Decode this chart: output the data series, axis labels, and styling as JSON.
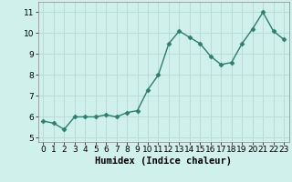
{
  "x": [
    0,
    1,
    2,
    3,
    4,
    5,
    6,
    7,
    8,
    9,
    10,
    11,
    12,
    13,
    14,
    15,
    16,
    17,
    18,
    19,
    20,
    21,
    22,
    23
  ],
  "y": [
    5.8,
    5.7,
    5.4,
    6.0,
    6.0,
    6.0,
    6.1,
    6.0,
    6.2,
    6.3,
    7.3,
    8.0,
    9.5,
    10.1,
    9.8,
    9.5,
    8.9,
    8.5,
    8.6,
    9.5,
    10.2,
    11.0,
    10.1,
    9.7
  ],
  "line_color": "#2e7d6e",
  "marker": "D",
  "marker_size": 2.5,
  "linewidth": 1.0,
  "bg_color": "#cff0eb",
  "grid_color_major": "#b8d8d3",
  "grid_color_minor": "#daf0ec",
  "xlabel": "Humidex (Indice chaleur)",
  "ylim": [
    4.8,
    11.5
  ],
  "xlim": [
    -0.5,
    23.5
  ],
  "yticks": [
    5,
    6,
    7,
    8,
    9,
    10,
    11
  ],
  "xticks": [
    0,
    1,
    2,
    3,
    4,
    5,
    6,
    7,
    8,
    9,
    10,
    11,
    12,
    13,
    14,
    15,
    16,
    17,
    18,
    19,
    20,
    21,
    22,
    23
  ],
  "tick_fontsize": 6.5,
  "xlabel_fontsize": 7.5
}
